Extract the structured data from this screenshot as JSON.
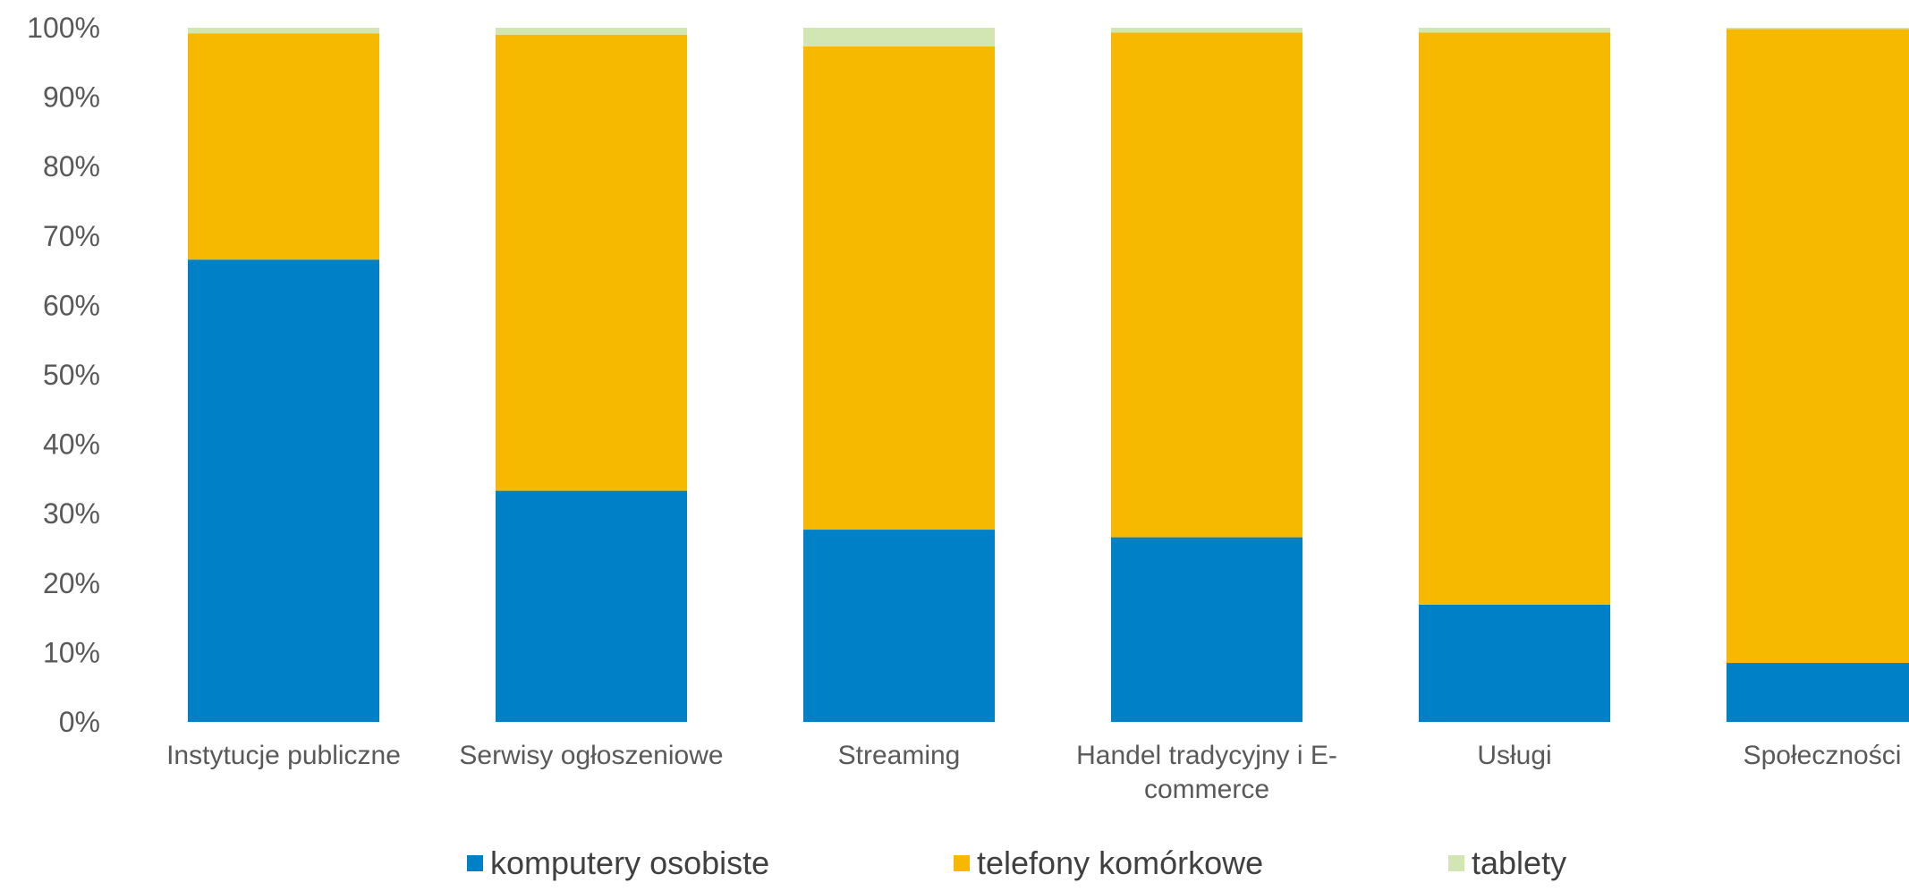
{
  "chart_data": {
    "type": "bar",
    "stacked": true,
    "percent": true,
    "categories": [
      "Instytucje publiczne",
      "Serwisy ogłoszeniowe",
      "Streaming",
      "Handel tradycyjny i E-commerce",
      "Usługi",
      "Społeczności"
    ],
    "category_lines": [
      [
        "Instytucje publiczne"
      ],
      [
        "Serwisy ogłoszeniowe"
      ],
      [
        "Streaming"
      ],
      [
        "Handel tradycyjny i E-",
        "commerce"
      ],
      [
        "Usługi"
      ],
      [
        "Społeczności"
      ]
    ],
    "series": [
      {
        "name": "komputery osobiste",
        "color": "#0080C6",
        "values": [
          66.6,
          33.3,
          27.7,
          26.6,
          16.9,
          8.5
        ]
      },
      {
        "name": "telefony komórkowe",
        "color": "#F7B900",
        "values": [
          32.6,
          65.7,
          69.6,
          72.7,
          82.4,
          91.3
        ]
      },
      {
        "name": "tablety",
        "color": "#D2E6B4",
        "values": [
          0.8,
          1.0,
          2.7,
          0.7,
          0.7,
          0.2
        ]
      }
    ],
    "ylim": [
      0,
      100
    ],
    "yticks": [
      "0%",
      "10%",
      "20%",
      "30%",
      "40%",
      "50%",
      "60%",
      "70%",
      "80%",
      "90%",
      "100%"
    ],
    "grid": false,
    "legend_position": "bottom",
    "title": "",
    "xlabel": "",
    "ylabel": ""
  }
}
